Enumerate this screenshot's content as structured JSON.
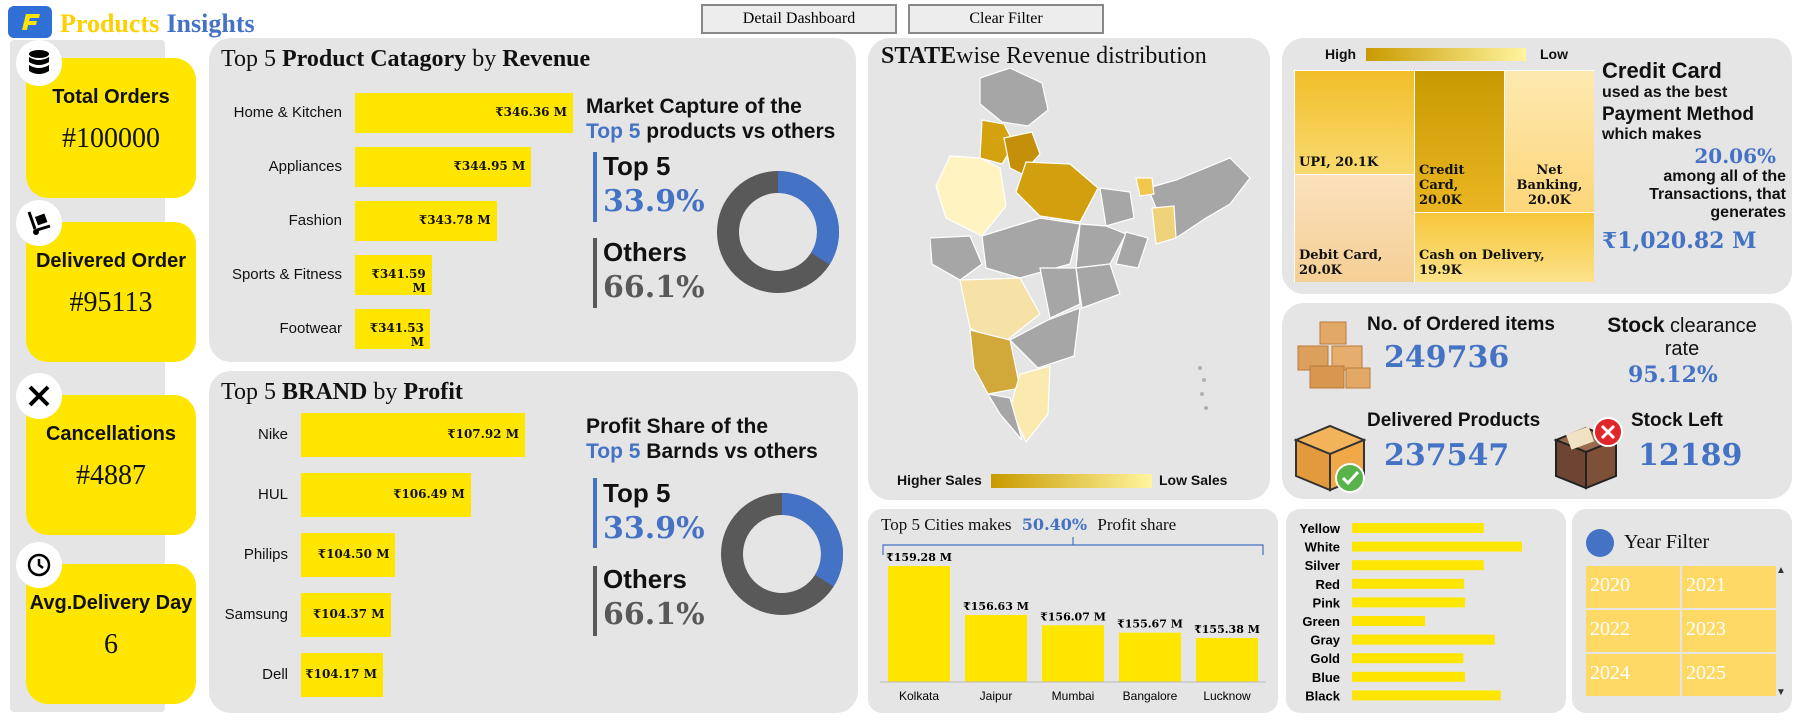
{
  "header": {
    "title_part1": "Products",
    "title_part2": "Insights",
    "detail_button": "Detail Dashboard",
    "clear_button": "Clear Filter"
  },
  "kpis": [
    {
      "icon": "database-icon",
      "title": "Total Orders",
      "value": "#100000"
    },
    {
      "icon": "hand-truck-icon",
      "title": "Delivered Order",
      "value": "#95113"
    },
    {
      "icon": "close-icon",
      "title": "Cancellations",
      "value": "#4887"
    },
    {
      "icon": "clock-icon",
      "title": "Avg.Delivery Day",
      "value": "6"
    }
  ],
  "category_panel": {
    "title_a": "Top 5 ",
    "title_b": "Product Catagory",
    "title_c": " by ",
    "title_d": "Revenue",
    "bars": [
      {
        "label": "Home & Kitchen",
        "value": 346.36,
        "text": "₹346.36 M"
      },
      {
        "label": "Appliances",
        "value": 344.95,
        "text": "₹344.95 M"
      },
      {
        "label": "Fashion",
        "value": 343.78,
        "text": "₹343.78 M"
      },
      {
        "label": "Sports & Fitness",
        "value": 341.59,
        "text": "₹341.59 M"
      },
      {
        "label": "Footwear",
        "value": 341.53,
        "text": "₹341.53 M"
      }
    ],
    "share_line1": "Market Capture of the",
    "share_top5_word": "Top 5",
    "share_line2_rest": " products vs others",
    "top_label": "Top 5",
    "top_pct": "33.9%",
    "others_label": "Others",
    "others_pct": "66.1%",
    "top_share": 33.9
  },
  "brand_panel": {
    "title_a": "Top 5 ",
    "title_b": "BRAND",
    "title_c": " by ",
    "title_d": "Profit",
    "bars": [
      {
        "label": "Nike",
        "value": 107.92,
        "text": "₹107.92 M"
      },
      {
        "label": "HUL",
        "value": 106.49,
        "text": "₹106.49 M"
      },
      {
        "label": "Philips",
        "value": 104.5,
        "text": "₹104.50 M"
      },
      {
        "label": "Samsung",
        "value": 104.37,
        "text": "₹104.37 M"
      },
      {
        "label": "Dell",
        "value": 104.17,
        "text": "₹104.17 M"
      }
    ],
    "share_line1": "Profit Share of the",
    "share_top5_word": "Top 5",
    "share_line2_rest": " Barnds vs others",
    "top_label": "Top 5",
    "top_pct": "33.9%",
    "others_label": "Others",
    "others_pct": "66.1%",
    "top_share": 33.9
  },
  "map_panel": {
    "title_bold": "STATE",
    "title_rest": "wise Revenue distribution",
    "legend_high": "Higher Sales",
    "legend_low": "Low Sales"
  },
  "payment_panel": {
    "legend_high": "High",
    "legend_low": "Low",
    "tiles": [
      {
        "name": "UPI, 20.1K"
      },
      {
        "name": "Credit Card, 20.0K"
      },
      {
        "name": "Net Banking, 20.0K"
      },
      {
        "name": "Debit Card, 20.0K"
      },
      {
        "name": "Cash on Delivery, 19.9K"
      }
    ],
    "headline": "Credit Card",
    "line2": "used as the best",
    "line3": "Payment Method",
    "line4": "which makes",
    "pct": "20.06%",
    "line5": "among all of the",
    "line6": "Transactions, that",
    "line7": "generates",
    "amount": "₹1,020.82 M"
  },
  "stock_panel": {
    "ordered_label": "No. of Ordered items",
    "ordered_value": "249736",
    "clearance_bold": "Stock",
    "clearance_rest": " clearance",
    "clearance_line2": "rate",
    "clearance_value": "95.12%",
    "delivered_label": "Delivered Products",
    "delivered_value": "237547",
    "left_label": "Stock Left",
    "left_value": "12189"
  },
  "cities_panel": {
    "title_a": "Top 5 Cities makes",
    "title_pct": "50.40%",
    "title_b": "Profit share",
    "chart_data": {
      "type": "bar",
      "categories": [
        "Kolkata",
        "Jaipur",
        "Mumbai",
        "Bangalore",
        "Lucknow"
      ],
      "values": [
        159.28,
        156.63,
        156.07,
        155.67,
        155.38
      ],
      "labels": [
        "₹159.28 M",
        "₹156.63 M",
        "₹156.07 M",
        "₹155.67 M",
        "₹155.38 M"
      ]
    }
  },
  "colors_panel": {
    "chart_data": {
      "type": "bar",
      "categories": [
        "Yellow",
        "White",
        "Silver",
        "Red",
        "Pink",
        "Green",
        "Gray",
        "Gold",
        "Blue",
        "Black"
      ],
      "values": [
        0.775,
        1.0,
        0.775,
        0.66,
        0.665,
        0.43,
        0.84,
        0.655,
        0.665,
        0.875
      ]
    }
  },
  "year_filter": {
    "title": "Year Filter",
    "years": [
      "2020",
      "2021",
      "2022",
      "2023",
      "2024",
      "2025"
    ]
  },
  "colors": {
    "yellow": "#ffe600",
    "blue": "#4472c4",
    "donut_grey": "#595959",
    "panel_bg": "#e6e5e6"
  }
}
